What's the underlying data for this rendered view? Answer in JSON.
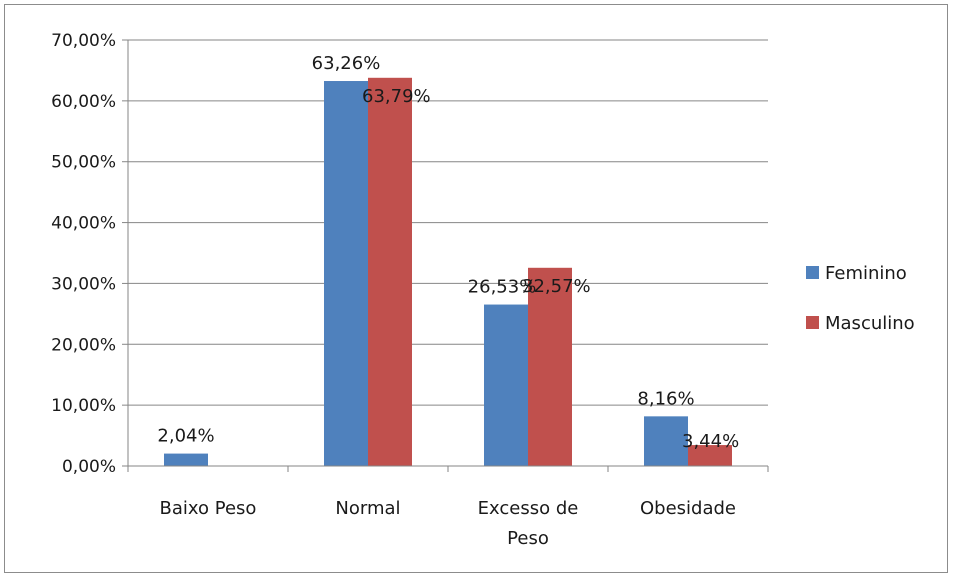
{
  "chart_data": {
    "type": "bar",
    "categories": [
      "Baixo Peso",
      "Normal",
      "Excesso de Peso",
      "Obesidade"
    ],
    "category_lines": [
      [
        "Baixo Peso"
      ],
      [
        "Normal"
      ],
      [
        "Excesso de",
        "Peso"
      ],
      [
        "Obesidade"
      ]
    ],
    "series": [
      {
        "name": "Feminino",
        "color": "#4f81bd",
        "values": [
          2.04,
          63.26,
          26.53,
          8.16
        ],
        "labels": [
          "2,04%",
          "63,26%",
          "26,53%",
          "8,16%"
        ]
      },
      {
        "name": "Masculino",
        "color": "#c0504d",
        "values": [
          null,
          63.79,
          32.57,
          3.44
        ],
        "labels": [
          null,
          "63,79%",
          "32,57%",
          "3,44%"
        ]
      }
    ],
    "ylim": [
      0,
      70
    ],
    "yticks": [
      0,
      10,
      20,
      30,
      40,
      50,
      60,
      70
    ],
    "ytick_labels": [
      "0,00%",
      "10,00%",
      "20,00%",
      "30,00%",
      "40,00%",
      "50,00%",
      "60,00%",
      "70,00%"
    ],
    "grid": true,
    "legend": "right",
    "title": "",
    "xlabel": "",
    "ylabel": ""
  }
}
